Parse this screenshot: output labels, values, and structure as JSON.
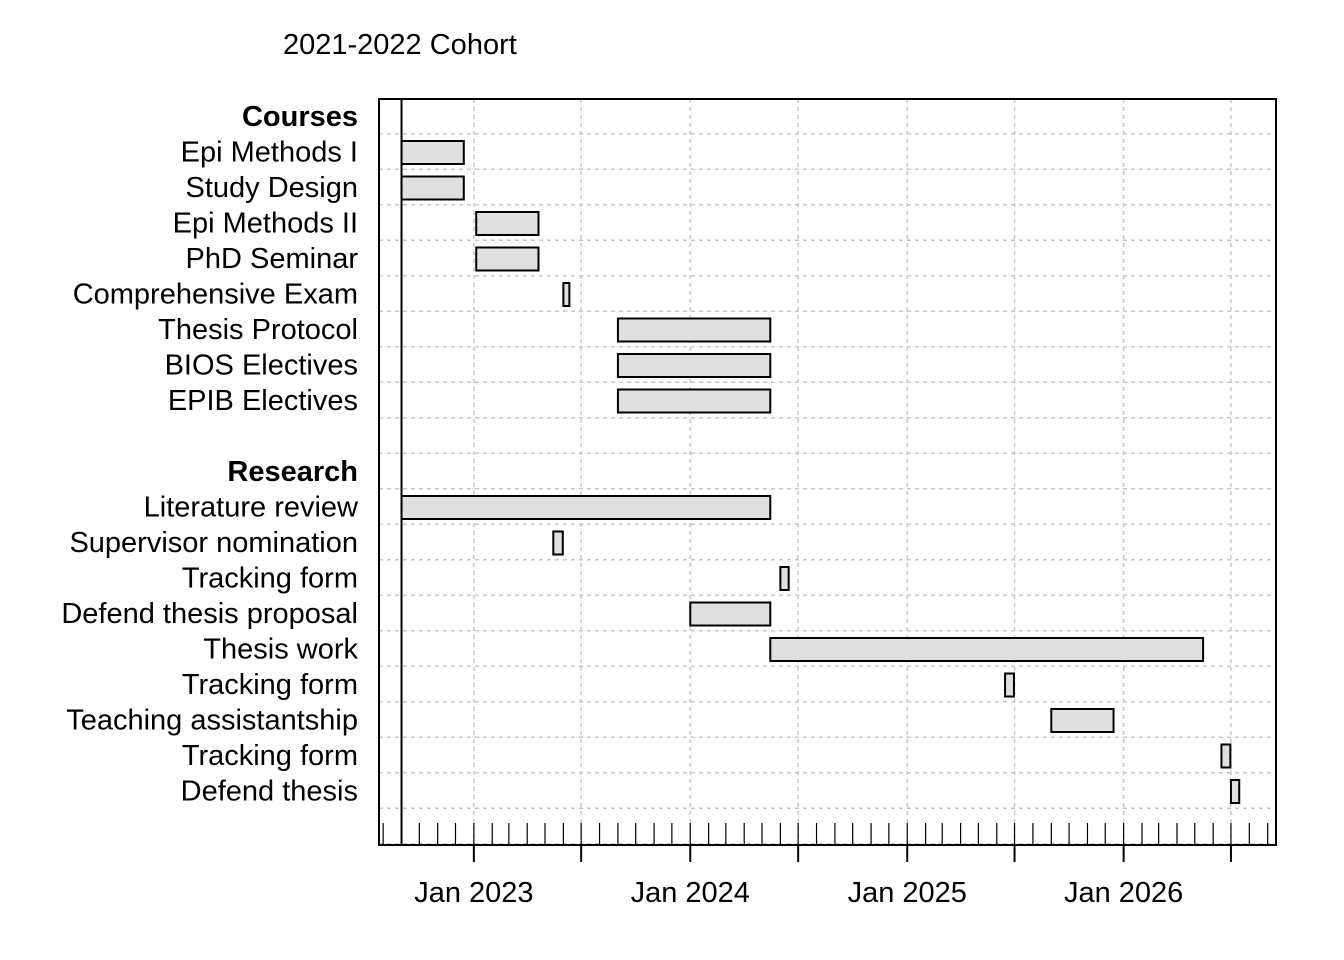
{
  "chart_data": {
    "type": "gantt",
    "title": "2021-2022 Cohort",
    "x_axis": {
      "type": "date",
      "range": [
        "2022-07-25",
        "2026-09-15"
      ],
      "tick_labels": [
        "Jan 2023",
        "Jan 2024",
        "Jan 2025",
        "Jan 2026"
      ],
      "tick_values": [
        "2023-01-01",
        "2024-01-01",
        "2025-01-01",
        "2026-01-01"
      ],
      "major_tick_values": [
        "2023-01-01",
        "2023-07-01",
        "2024-01-01",
        "2024-07-01",
        "2025-01-01",
        "2025-07-01",
        "2026-01-01",
        "2026-07-01"
      ],
      "minor_ticks": "monthly"
    },
    "start_line": "2022-09-01",
    "grid": true,
    "bar_fill": "#e0e0e0",
    "bar_stroke": "#000000",
    "grid_color": "#c8c8c8",
    "rows": [
      {
        "type": "group",
        "label": "Courses"
      },
      {
        "type": "task",
        "label": "Epi Methods I",
        "start": "2022-09-01",
        "end": "2022-12-15"
      },
      {
        "type": "task",
        "label": "Study Design",
        "start": "2022-09-01",
        "end": "2022-12-15"
      },
      {
        "type": "task",
        "label": "Epi Methods II",
        "start": "2023-01-05",
        "end": "2023-04-20"
      },
      {
        "type": "task",
        "label": "PhD Seminar",
        "start": "2023-01-05",
        "end": "2023-04-20"
      },
      {
        "type": "task",
        "label": "Comprehensive Exam",
        "start": "2023-06-01",
        "end": "2023-06-10"
      },
      {
        "type": "task",
        "label": "Thesis Protocol",
        "start": "2023-09-01",
        "end": "2024-05-15"
      },
      {
        "type": "task",
        "label": "BIOS Electives",
        "start": "2023-09-01",
        "end": "2024-05-15"
      },
      {
        "type": "task",
        "label": "EPIB Electives",
        "start": "2023-09-01",
        "end": "2024-05-15"
      },
      {
        "type": "spacer",
        "label": ""
      },
      {
        "type": "group",
        "label": "Research"
      },
      {
        "type": "task",
        "label": "Literature review",
        "start": "2022-09-01",
        "end": "2024-05-15"
      },
      {
        "type": "task",
        "label": "Supervisor nomination",
        "start": "2023-05-15",
        "end": "2023-05-31"
      },
      {
        "type": "task",
        "label": "Tracking form",
        "start": "2024-06-01",
        "end": "2024-06-15"
      },
      {
        "type": "task",
        "label": "Defend thesis proposal",
        "start": "2024-01-01",
        "end": "2024-05-15"
      },
      {
        "type": "task",
        "label": "Thesis work",
        "start": "2024-05-15",
        "end": "2026-05-15"
      },
      {
        "type": "task",
        "label": "Tracking form",
        "start": "2025-06-15",
        "end": "2025-06-30"
      },
      {
        "type": "task",
        "label": "Teaching assistantship",
        "start": "2025-09-01",
        "end": "2025-12-15"
      },
      {
        "type": "task",
        "label": "Tracking form",
        "start": "2026-06-15",
        "end": "2026-06-30"
      },
      {
        "type": "task",
        "label": "Defend thesis",
        "start": "2026-07-01",
        "end": "2026-07-15"
      }
    ]
  }
}
